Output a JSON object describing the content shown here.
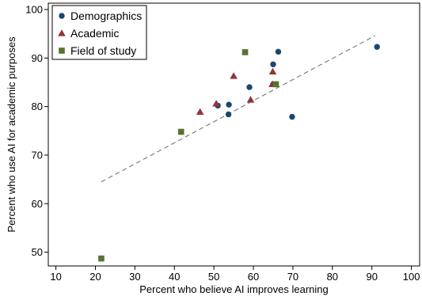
{
  "chart_data": {
    "type": "scatter",
    "xlabel": "Percent who believe AI improves learning",
    "ylabel": "Percent who use AI for academic purposes",
    "xlim": [
      10,
      100
    ],
    "ylim": [
      48,
      101
    ],
    "xticks": [
      10,
      20,
      30,
      40,
      50,
      60,
      70,
      80,
      90,
      100
    ],
    "yticks": [
      50,
      60,
      70,
      80,
      90,
      100
    ],
    "grid": false,
    "legend_position": "top-left",
    "series": [
      {
        "name": "Demographics",
        "marker": "circle",
        "color": "#1a476f",
        "points": [
          {
            "x": 91.3,
            "y": 92.3
          },
          {
            "x": 66.3,
            "y": 91.3
          },
          {
            "x": 65.0,
            "y": 88.7
          },
          {
            "x": 59.0,
            "y": 84.0
          },
          {
            "x": 53.8,
            "y": 80.4
          },
          {
            "x": 51.0,
            "y": 80.2
          },
          {
            "x": 53.7,
            "y": 78.4
          },
          {
            "x": 69.8,
            "y": 77.9
          },
          {
            "x": 65.0,
            "y": 84.6
          }
        ]
      },
      {
        "name": "Academic",
        "marker": "triangle",
        "color": "#90353b",
        "points": [
          {
            "x": 55.0,
            "y": 86.3
          },
          {
            "x": 64.9,
            "y": 87.2
          },
          {
            "x": 64.8,
            "y": 84.6
          },
          {
            "x": 59.3,
            "y": 81.4
          },
          {
            "x": 50.6,
            "y": 80.6
          },
          {
            "x": 46.5,
            "y": 78.9
          }
        ]
      },
      {
        "name": "Field of study",
        "marker": "square",
        "color": "#55752f",
        "points": [
          {
            "x": 57.9,
            "y": 91.2
          },
          {
            "x": 65.7,
            "y": 84.6
          },
          {
            "x": 41.7,
            "y": 74.8
          },
          {
            "x": 21.5,
            "y": 48.7
          }
        ]
      }
    ],
    "trendline": {
      "style": "dashed",
      "color": "#777777",
      "x": [
        21.5,
        90.8
      ],
      "y": [
        64.5,
        94.6
      ]
    }
  }
}
